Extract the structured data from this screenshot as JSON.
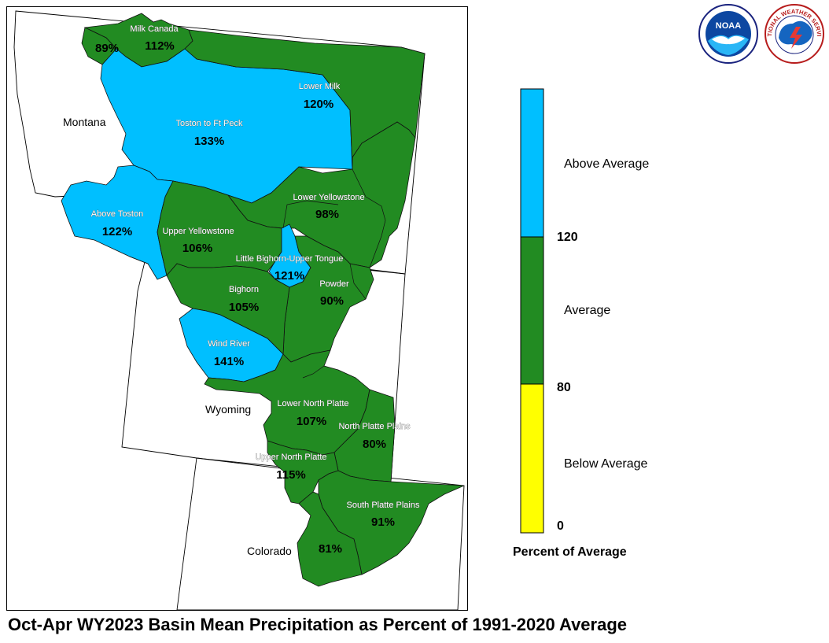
{
  "title": "Oct-Apr WY2023 Basin Mean Precipitation as Percent of 1991-2020 Average",
  "colors": {
    "above": "#00BFFF",
    "average": "#228B22",
    "below": "#FFFF00",
    "outline": "#000000"
  },
  "states": [
    {
      "id": "montana",
      "name": "Montana"
    },
    {
      "id": "wyoming",
      "name": "Wyoming"
    },
    {
      "id": "colorado",
      "name": "Colorado"
    }
  ],
  "basins": [
    {
      "id": "milk-canada",
      "name": "Milk Canada",
      "percent": "112%",
      "category": "average"
    },
    {
      "id": "milk-west",
      "name": "",
      "percent": "89%",
      "category": "average"
    },
    {
      "id": "lower-milk",
      "name": "Lower Milk",
      "percent": "120%",
      "category": "average"
    },
    {
      "id": "toston-ft-peck",
      "name": "Toston to Ft Peck",
      "percent": "133%",
      "category": "above"
    },
    {
      "id": "above-toston",
      "name": "Above Toston",
      "percent": "122%",
      "category": "above"
    },
    {
      "id": "lower-yellowstone",
      "name": "Lower Yellowstone",
      "percent": "98%",
      "category": "average"
    },
    {
      "id": "upper-yellowstone",
      "name": "Upper Yellowstone",
      "percent": "106%",
      "category": "average"
    },
    {
      "id": "little-bighorn-upper-tongue",
      "name": "Little Bighorn-Upper Tongue",
      "percent": "121%",
      "category": "above"
    },
    {
      "id": "bighorn",
      "name": "Bighorn",
      "percent": "105%",
      "category": "average"
    },
    {
      "id": "powder",
      "name": "Powder",
      "percent": "90%",
      "category": "average"
    },
    {
      "id": "wind-river",
      "name": "Wind River",
      "percent": "141%",
      "category": "above"
    },
    {
      "id": "lower-north-platte",
      "name": "Lower North Platte",
      "percent": "107%",
      "category": "average"
    },
    {
      "id": "north-platte-plains",
      "name": "North Platte Plains",
      "percent": "80%",
      "category": "average"
    },
    {
      "id": "upper-north-platte",
      "name": "Upper North Platte",
      "percent": "115%",
      "category": "average"
    },
    {
      "id": "south-platte-plains",
      "name": "South Platte Plains",
      "percent": "91%",
      "category": "average"
    },
    {
      "id": "south-platte-west",
      "name": "",
      "percent": "81%",
      "category": "average"
    }
  ],
  "legend": {
    "title": "Percent of Average",
    "categories": [
      {
        "label": "Above Average",
        "color": "#00BFFF"
      },
      {
        "label": "Average",
        "color": "#228B22"
      },
      {
        "label": "Below Average",
        "color": "#FFFF00"
      }
    ],
    "ticks": [
      "120",
      "80",
      "0"
    ]
  },
  "logos": [
    {
      "name": "noaa-logo",
      "text": "NOAA",
      "icon": "noaa-seagull-icon"
    },
    {
      "name": "nws-logo",
      "text": "NATIONAL WEATHER SERVICE",
      "icon": "nws-storm-icon"
    }
  ]
}
